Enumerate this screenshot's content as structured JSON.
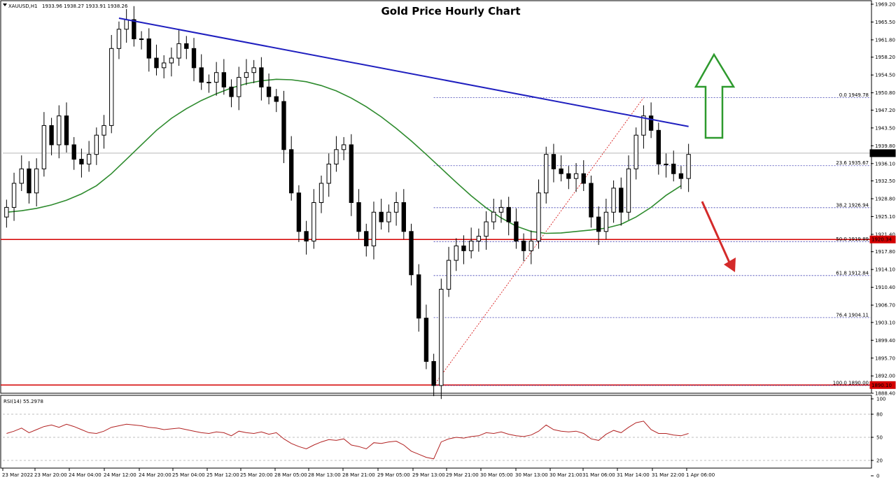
{
  "header": {
    "symbol": "XAUUSD,H1",
    "ohlc": "1933.96 1938.27 1933.91 1938.26",
    "title": "Gold Price Hourly Chart"
  },
  "colors": {
    "bull_candle": "#ffffff",
    "bear_candle": "#000000",
    "trendline": "#1f1fbf",
    "moving_average": "#2e8b2e",
    "horizontal_level": "#d40000",
    "fib_lines": "#3a3ab0",
    "rsi_line": "#b22222",
    "arrow_up": "#2e9a2e",
    "arrow_down": "#d42a2a"
  },
  "chart_data": [
    {
      "type": "candlestick",
      "title": "Gold Price Hourly Chart",
      "ylim": [
        1888.4,
        1969.2
      ],
      "y_tick_labels": [
        "1969.20",
        "1965.50",
        "1961.80",
        "1958.20",
        "1954.50",
        "1950.80",
        "1947.20",
        "1943.50",
        "1939.80",
        "1936.10",
        "1932.50",
        "1928.80",
        "1925.10",
        "1921.40",
        "1917.80",
        "1914.10",
        "1910.40",
        "1906.70",
        "1903.10",
        "1899.40",
        "1895.70",
        "1892.00",
        "1888.40"
      ],
      "x_tick_labels": [
        "23 Mar 2022",
        "23 Mar 20:00",
        "24 Mar 04:00",
        "24 Mar 12:00",
        "24 Mar 20:00",
        "25 Mar 04:00",
        "25 Mar 12:00",
        "25 Mar 20:00",
        "28 Mar 05:00",
        "28 Mar 13:00",
        "28 Mar 21:00",
        "29 Mar 05:00",
        "29 Mar 13:00",
        "29 Mar 21:00",
        "30 Mar 05:00",
        "30 Mar 13:00",
        "30 Mar 21:00",
        "31 Mar 06:00",
        "31 Mar 14:00",
        "31 Mar 22:00",
        "1 Apr 06:00"
      ],
      "current_price": "1938.26",
      "close": [
        1927,
        1932,
        1935,
        1930,
        1935,
        1944,
        1940,
        1946,
        1940,
        1937,
        1936,
        1938,
        1942,
        1944,
        1960,
        1964,
        1966,
        1962,
        1962,
        1958,
        1956,
        1957,
        1958,
        1961,
        1960,
        1956,
        1953,
        1953,
        1955,
        1952,
        1950,
        1954,
        1955,
        1956,
        1952,
        1950,
        1949,
        1939,
        1930,
        1922,
        1920,
        1928,
        1932,
        1936,
        1939,
        1940,
        1928,
        1922,
        1919,
        1926,
        1924,
        1926,
        1928,
        1922,
        1913,
        1904,
        1895,
        1890,
        1910,
        1916,
        1919,
        1918,
        1920,
        1921,
        1924,
        1926,
        1927,
        1924,
        1920,
        1918,
        1920,
        1930,
        1938,
        1935,
        1934,
        1933,
        1934,
        1932,
        1925,
        1922,
        1926,
        1931,
        1926,
        1935,
        1942,
        1946,
        1943,
        1936,
        1936,
        1934,
        1933,
        1938
      ],
      "fibonacci_labels": [
        "0.0 1949.78",
        "23.6 1935.67",
        "38.2 1926.94",
        "50.0 1919.89",
        "61.8 1912.84",
        "76.4 1904.11",
        "100.0 1890.00"
      ],
      "fibonacci_values": [
        1949.78,
        1935.67,
        1926.94,
        1919.89,
        1912.84,
        1904.11,
        1890.0
      ],
      "horizontal_levels": [
        {
          "label": "1920.34",
          "value": 1920.34
        },
        {
          "label": "1890.10",
          "value": 1890.1
        }
      ],
      "trendline": [
        [
          15,
          1966.3
        ],
        [
          91,
          1943.8
        ]
      ],
      "moving_average": [
        1926,
        1926.3,
        1926.8,
        1927.5,
        1928.5,
        1929.8,
        1931.5,
        1934,
        1937,
        1940,
        1943,
        1945.5,
        1947.5,
        1949.2,
        1950.6,
        1951.8,
        1952.7,
        1953.3,
        1953.6,
        1953.5,
        1953.1,
        1952.3,
        1951.2,
        1949.7,
        1947.9,
        1945.8,
        1943.4,
        1940.8,
        1938,
        1935.1,
        1932.2,
        1929.4,
        1926.9,
        1924.8,
        1923.1,
        1922,
        1921.6,
        1921.7,
        1922,
        1922.3,
        1922.7,
        1923.5,
        1925,
        1927,
        1929.5,
        1931.5
      ],
      "moving_average_start_bar": 0,
      "moving_average_step": 2
    },
    {
      "type": "line",
      "title": "RSI(14) 55.2978",
      "ylim": [
        10,
        100
      ],
      "y_tick_labels": [
        "100",
        "80",
        "50",
        "20",
        "0"
      ],
      "y_ticks": [
        100,
        80,
        50,
        20,
        0
      ],
      "guide_levels": [
        80,
        50,
        20
      ],
      "values": [
        55,
        58,
        62,
        56,
        60,
        64,
        66,
        63,
        67,
        64,
        60,
        56,
        55,
        58,
        63,
        65,
        67,
        66,
        65,
        63,
        62,
        60,
        61,
        62,
        60,
        58,
        56,
        55,
        57,
        56,
        52,
        58,
        56,
        55,
        57,
        54,
        56,
        48,
        42,
        38,
        35,
        40,
        44,
        47,
        46,
        48,
        40,
        38,
        35,
        43,
        42,
        44,
        45,
        40,
        32,
        28,
        24,
        22,
        44,
        48,
        50,
        49,
        51,
        52,
        56,
        55,
        57,
        54,
        52,
        51,
        53,
        58,
        66,
        60,
        58,
        57,
        58,
        55,
        48,
        46,
        54,
        59,
        56,
        63,
        69,
        71,
        60,
        55,
        55,
        53,
        52,
        55
      ]
    }
  ]
}
